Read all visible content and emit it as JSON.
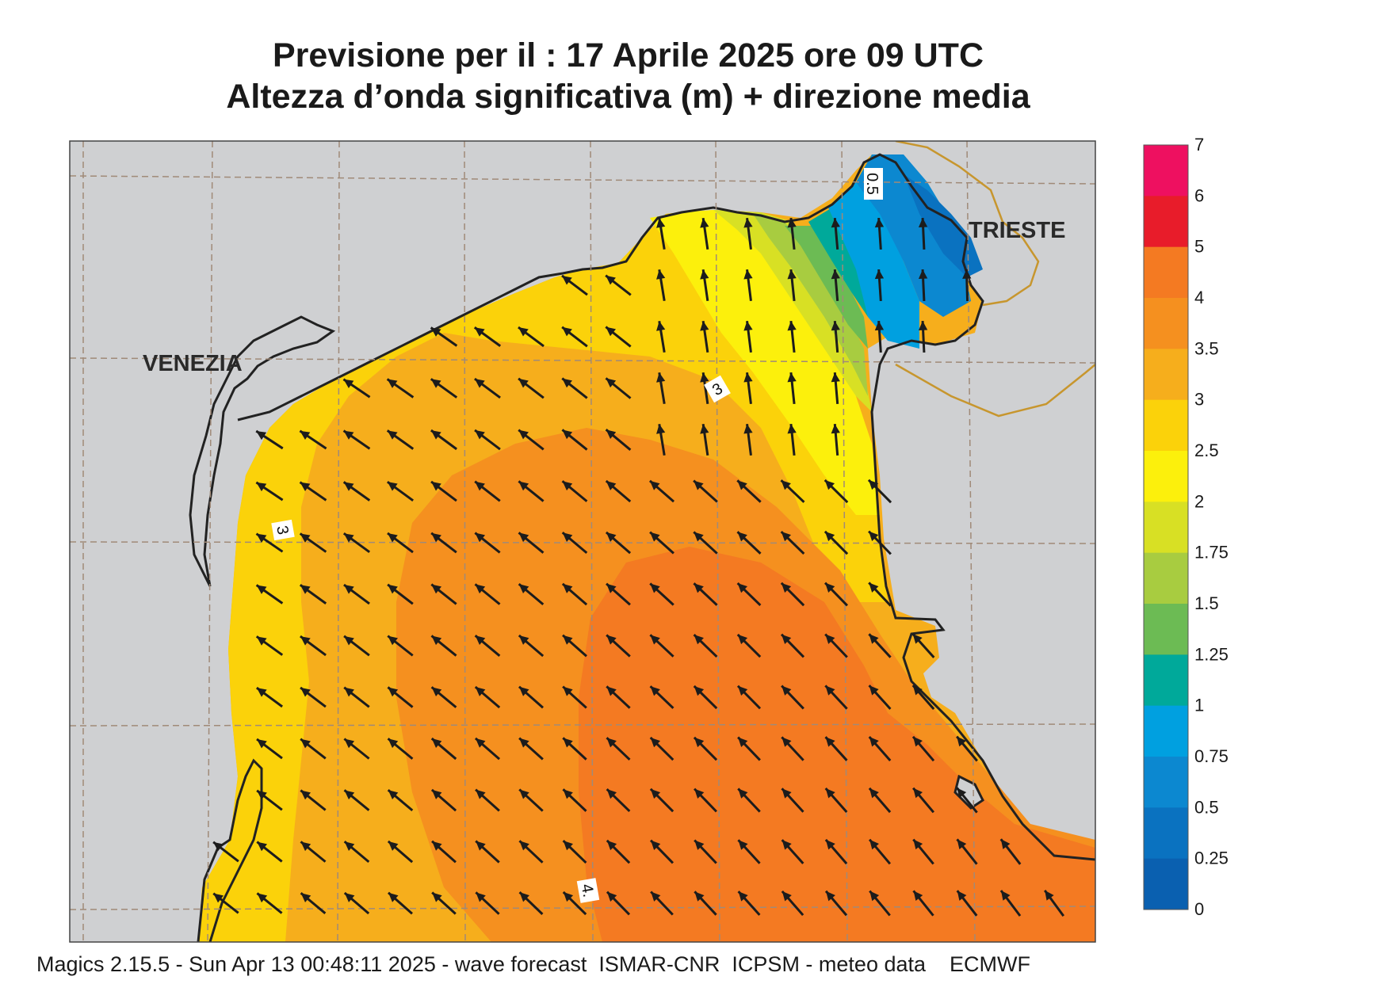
{
  "header": {
    "title_line1": "Previsione per il  :  17   Aprile  2025   ore 09 UTC",
    "title_line2": "Altezza d’onda significativa (m) + direzione media"
  },
  "places": {
    "venezia": "VENEZIA",
    "trieste": "TRIESTE"
  },
  "contour_labels": [
    "3",
    "3",
    "0.5",
    "4."
  ],
  "colorbar": {
    "levels": [
      {
        "label": "7",
        "color": ""
      },
      {
        "label": "6",
        "color": "#ee1060"
      },
      {
        "label": "5",
        "color": "#e81c2a"
      },
      {
        "label": "4",
        "color": "#f47a22"
      },
      {
        "label": "3.5",
        "color": "#f5901f"
      },
      {
        "label": "3",
        "color": "#f6ae1c"
      },
      {
        "label": "2.5",
        "color": "#fbd20a"
      },
      {
        "label": "2",
        "color": "#fcf00c"
      },
      {
        "label": "1.75",
        "color": "#d8e024"
      },
      {
        "label": "1.5",
        "color": "#a8cc40"
      },
      {
        "label": "1.25",
        "color": "#6cbb54"
      },
      {
        "label": "1",
        "color": "#00a99a"
      },
      {
        "label": "0.75",
        "color": "#00a0e0"
      },
      {
        "label": "0.5",
        "color": "#0c88d0"
      },
      {
        "label": "0.25",
        "color": "#0a72c0"
      },
      {
        "label": "0",
        "color": "#0a60b0"
      }
    ]
  },
  "colors": {
    "land": "#cfd0d2",
    "coast": "#222222",
    "grid": "#a08a78",
    "border": "#c7962e",
    "arrow": "#1c1c1c"
  },
  "footer": {
    "text": "Magics 2.15.5 - Sun Apr 13 00:48:11 2025 - wave forecast  ISMAR-CNR  ICPSM - meteo data    ECMWF"
  }
}
